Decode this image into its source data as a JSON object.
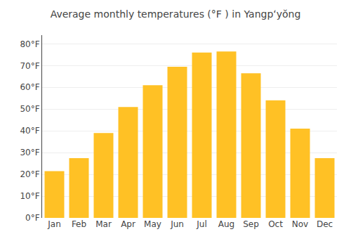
{
  "chart_data": {
    "type": "bar",
    "title": "Average monthly temperatures (°F ) in Yangpʻyŏng",
    "categories": [
      "Jan",
      "Feb",
      "Mar",
      "Apr",
      "May",
      "Jun",
      "Jul",
      "Aug",
      "Sep",
      "Oct",
      "Nov",
      "Dec"
    ],
    "values": [
      21.5,
      27.5,
      39.0,
      51.0,
      61.0,
      69.5,
      76.0,
      76.5,
      66.5,
      54.0,
      41.0,
      27.5
    ],
    "color": "#FFC125",
    "ylim": [
      0,
      84
    ],
    "yticks": [
      {
        "value": 0,
        "label": "0°F"
      },
      {
        "value": 10,
        "label": "10°F"
      },
      {
        "value": 20,
        "label": "20°F"
      },
      {
        "value": 30,
        "label": "30°F"
      },
      {
        "value": 40,
        "label": "40°F"
      },
      {
        "value": 50,
        "label": "50°F"
      },
      {
        "value": 60,
        "label": "60°F"
      },
      {
        "value": 70,
        "label": "70°F"
      },
      {
        "value": 80,
        "label": "80°F"
      }
    ],
    "grid": true
  }
}
